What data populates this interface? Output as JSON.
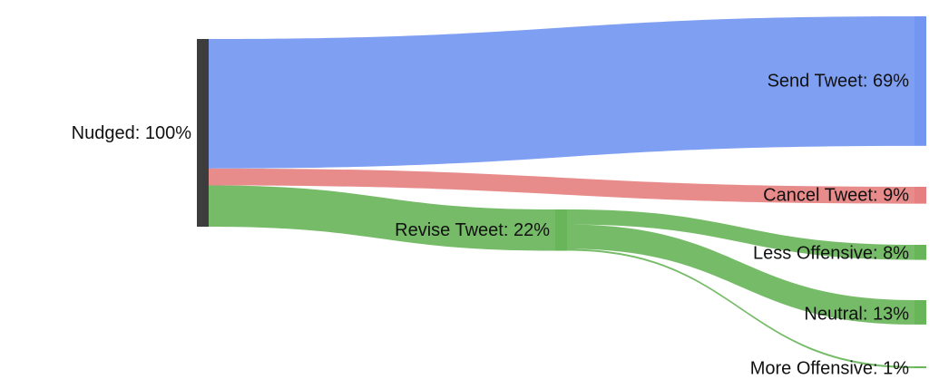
{
  "chart_data": {
    "type": "sankey",
    "colors": {
      "source": "#3d3d3d",
      "send": "#5b84ee",
      "cancel": "#e26a6a",
      "revise": "#4fa83d"
    },
    "nodes": [
      {
        "id": "nudged",
        "label": "Nudged: 100%",
        "value": 100,
        "color": "#3d3d3d"
      },
      {
        "id": "send",
        "label": "Send Tweet: 69%",
        "value": 69,
        "color": "#5b84ee"
      },
      {
        "id": "cancel",
        "label": "Cancel Tweet: 9%",
        "value": 9,
        "color": "#e26a6a"
      },
      {
        "id": "revise",
        "label": "Revise Tweet: 22%",
        "value": 22,
        "color": "#4fa83d"
      },
      {
        "id": "less",
        "label": "Less Offensive: 8%",
        "value": 8,
        "color": "#4fa83d"
      },
      {
        "id": "neutral",
        "label": "Neutral: 13%",
        "value": 13,
        "color": "#4fa83d"
      },
      {
        "id": "more",
        "label": "More Offensive: 1%",
        "value": 1,
        "color": "#4fa83d"
      }
    ],
    "links": [
      {
        "source": "nudged",
        "target": "send",
        "value": 69,
        "color": "#5b84ee"
      },
      {
        "source": "nudged",
        "target": "cancel",
        "value": 9,
        "color": "#e26a6a"
      },
      {
        "source": "nudged",
        "target": "revise",
        "value": 22,
        "color": "#4fa83d"
      },
      {
        "source": "revise",
        "target": "less",
        "value": 8,
        "color": "#4fa83d"
      },
      {
        "source": "revise",
        "target": "neutral",
        "value": 13,
        "color": "#4fa83d"
      },
      {
        "source": "revise",
        "target": "more",
        "value": 1,
        "color": "#4fa83d"
      }
    ]
  }
}
